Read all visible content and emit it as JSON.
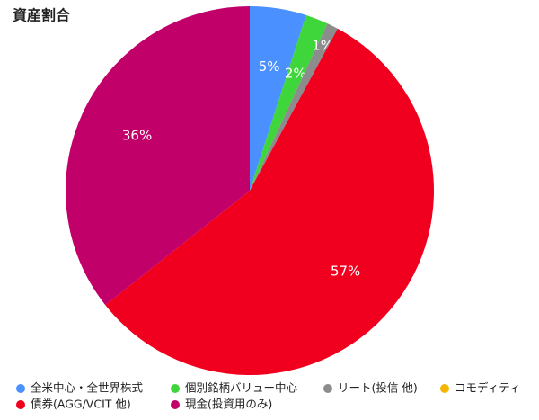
{
  "chart_data": {
    "type": "pie",
    "title": "資産割合",
    "categories": [
      "全米中心・全世界株式",
      "個別銘柄バリュー中心",
      "リート(投信 他)",
      "コモディティ",
      "債券(AGG/VCIT 他)",
      "現金(投資用のみ)"
    ],
    "values": [
      5,
      2,
      1,
      0,
      57,
      36
    ],
    "value_labels": [
      "5%",
      "2%",
      "1%",
      null,
      "57%",
      "36%"
    ],
    "colors": [
      "#4a90ff",
      "#3ed63a",
      "#8c8c8c",
      "#f5b400",
      "#f0001e",
      "#c2006a"
    ],
    "legend": "bottom"
  }
}
